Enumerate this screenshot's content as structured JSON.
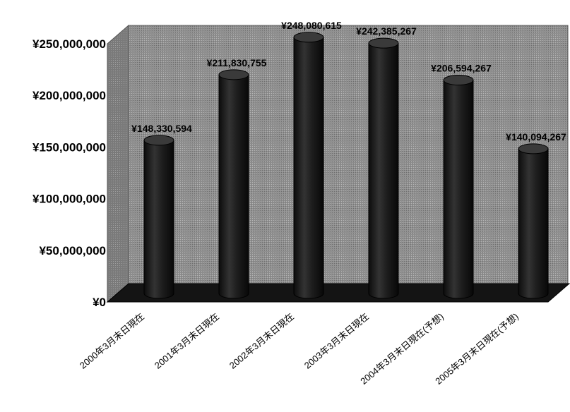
{
  "chart_data": {
    "type": "bar",
    "title": "",
    "xlabel": "",
    "ylabel": "",
    "categories": [
      "2000年3月末日現在",
      "2001年3月末日現在",
      "2002年3月末日現在",
      "2003年3月末日現在",
      "2004年3月末日現在(予想)",
      "2005年3月末日現在(予想)"
    ],
    "values": [
      148330594,
      211830755,
      248080615,
      242385267,
      206594267,
      140094267
    ],
    "data_labels": [
      "¥148,330,594",
      "¥211,830,755",
      "¥248,080,615",
      "¥242,385,267",
      "¥206,594,267",
      "¥140,094,267"
    ],
    "ylim": [
      0,
      250000000
    ],
    "y_ticks": [
      0,
      50000000,
      100000000,
      150000000,
      200000000,
      250000000
    ],
    "y_tick_labels": [
      "¥0",
      "¥50,000,000",
      "¥100,000,000",
      "¥150,000,000",
      "¥200,000,000",
      "¥250,000,000"
    ],
    "grid": false,
    "legend": "none",
    "style": "3d-cylinder",
    "colors": {
      "bar": "#1a1a1a",
      "bar_highlight": "#5a5a5a",
      "bar_top": "#3a3a3a",
      "wall": "#8f8f8f",
      "side_wall": "#7a7a7a",
      "floor": "#141414"
    }
  }
}
